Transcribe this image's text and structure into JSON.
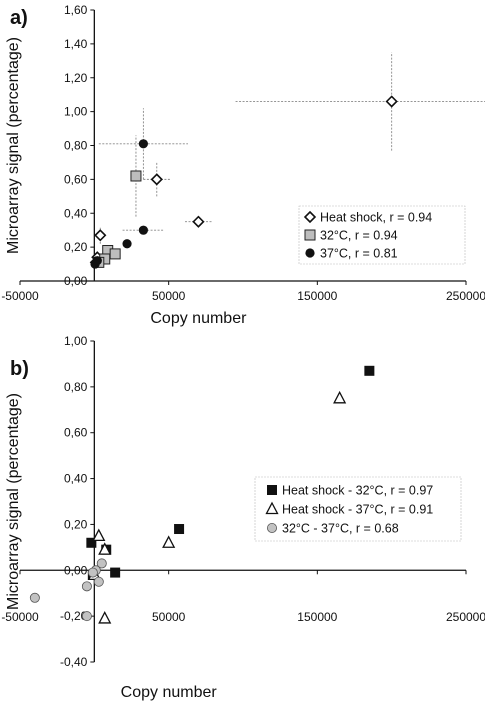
{
  "chart_data": [
    {
      "type": "scatter",
      "panel_label": "a)",
      "xlabel": "Copy number",
      "ylabel": "Microarray signal (percentage)",
      "xlim": [
        -50000,
        250000
      ],
      "ylim": [
        0,
        1.6
      ],
      "xticks": [
        "-50000",
        "50000",
        "150000",
        "250000"
      ],
      "yticks": [
        "0,00",
        "0,20",
        "0,40",
        "0,60",
        "0,80",
        "1,00",
        "1,20",
        "1,40",
        "1,60"
      ],
      "legend_position": "bottom-right",
      "series": [
        {
          "name": "Heat shock, r = 0.94",
          "marker": "diamond-open",
          "points": [
            {
              "x": 200000,
              "y": 1.06,
              "xerr": 105000,
              "yerr": 0.29
            },
            {
              "x": 42000,
              "y": 0.6,
              "xerr": 9000,
              "yerr": 0.1
            },
            {
              "x": 70000,
              "y": 0.35,
              "xerr": 9000,
              "yerr": 0
            },
            {
              "x": 4000,
              "y": 0.27,
              "xerr": 0,
              "yerr": 0.05
            },
            {
              "x": 11000,
              "y": 0.17,
              "xerr": 0,
              "yerr": 0
            },
            {
              "x": 2000,
              "y": 0.14,
              "xerr": 0,
              "yerr": 0
            },
            {
              "x": 1000,
              "y": 0.11,
              "xerr": 0,
              "yerr": 0
            }
          ]
        },
        {
          "name": "32°C, r = 0.94",
          "marker": "square-gray",
          "points": [
            {
              "x": 28000,
              "y": 0.62,
              "xerr": 0,
              "yerr": 0.24
            },
            {
              "x": 9000,
              "y": 0.18,
              "xerr": 0,
              "yerr": 0
            },
            {
              "x": 14000,
              "y": 0.16,
              "xerr": 0,
              "yerr": 0
            },
            {
              "x": 7000,
              "y": 0.13,
              "xerr": 0,
              "yerr": 0
            },
            {
              "x": 3000,
              "y": 0.11,
              "xerr": 0,
              "yerr": 0
            }
          ]
        },
        {
          "name": "37°C, r = 0.81",
          "marker": "circle-black",
          "points": [
            {
              "x": 33000,
              "y": 0.81,
              "xerr": 30000,
              "yerr": 0.21
            },
            {
              "x": 33000,
              "y": 0.3,
              "xerr": 14000,
              "yerr": 0
            },
            {
              "x": 22000,
              "y": 0.22,
              "xerr": 0,
              "yerr": 0
            },
            {
              "x": 2000,
              "y": 0.12,
              "xerr": 0,
              "yerr": 0
            },
            {
              "x": 500,
              "y": 0.1,
              "xerr": 0,
              "yerr": 0
            }
          ]
        }
      ]
    },
    {
      "type": "scatter",
      "panel_label": "b)",
      "xlabel": "Copy number",
      "ylabel": "Microarray signal (percentage)",
      "xlim": [
        -50000,
        250000
      ],
      "ylim": [
        -0.4,
        1.0
      ],
      "xticks": [
        "-50000",
        "50000",
        "150000",
        "250000"
      ],
      "yticks": [
        "-0,40",
        "-0,20",
        "0,00",
        "0,20",
        "0,40",
        "0,60",
        "0,80",
        "1,00"
      ],
      "legend_position": "right",
      "series": [
        {
          "name": "Heat shock - 32°C, r = 0.97",
          "marker": "square-black",
          "points": [
            {
              "x": 185000,
              "y": 0.87
            },
            {
              "x": 57000,
              "y": 0.18
            },
            {
              "x": -2000,
              "y": 0.12
            },
            {
              "x": 8000,
              "y": 0.09
            },
            {
              "x": 14000,
              "y": -0.01
            },
            {
              "x": -1000,
              "y": -0.02
            }
          ]
        },
        {
          "name": "Heat shock - 37°C, r = 0.91",
          "marker": "triangle-open",
          "points": [
            {
              "x": 165000,
              "y": 0.75
            },
            {
              "x": 50000,
              "y": 0.12
            },
            {
              "x": 3000,
              "y": 0.15
            },
            {
              "x": 7000,
              "y": 0.09
            },
            {
              "x": 7000,
              "y": -0.21
            },
            {
              "x": 0,
              "y": -0.02
            }
          ]
        },
        {
          "name": "32°C - 37°C, r = 0.68",
          "marker": "circle-gray",
          "points": [
            {
              "x": -40000,
              "y": -0.12
            },
            {
              "x": -5000,
              "y": -0.2
            },
            {
              "x": -5000,
              "y": -0.07
            },
            {
              "x": 5000,
              "y": 0.03
            },
            {
              "x": 1000,
              "y": 0.0
            },
            {
              "x": 3000,
              "y": -0.05
            },
            {
              "x": -1000,
              "y": -0.01
            }
          ]
        }
      ]
    }
  ]
}
